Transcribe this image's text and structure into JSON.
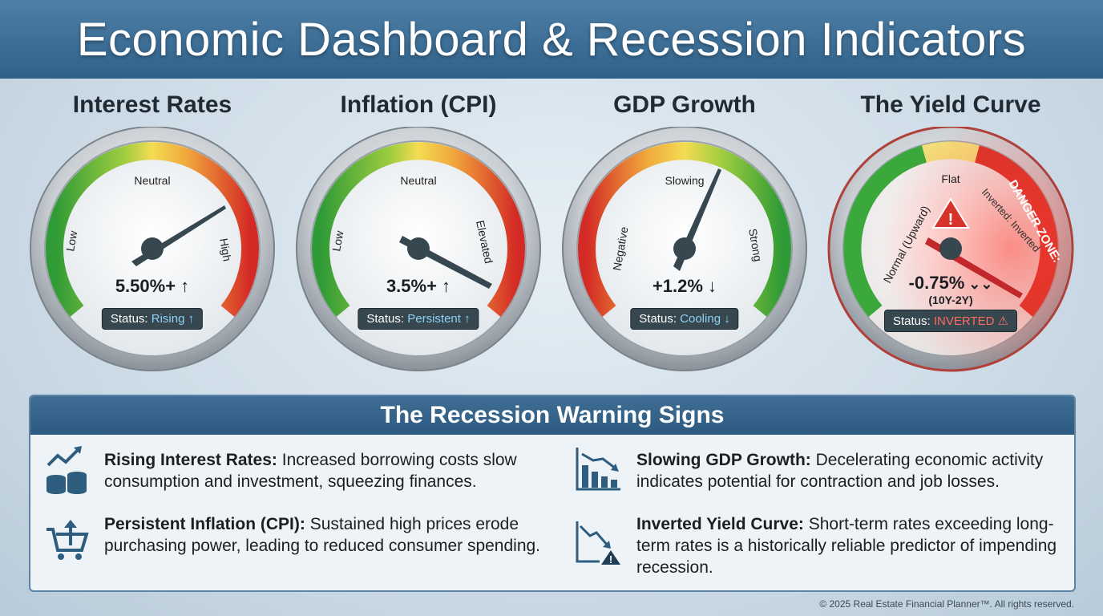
{
  "header": {
    "title": "Economic Dashboard & Recession Indicators"
  },
  "gauges": [
    {
      "title": "Interest Rates",
      "labels": {
        "left": "Low",
        "top": "Neutral",
        "right": "High"
      },
      "value": "5.50%+",
      "trend_icon": "arrow-up-icon",
      "status_label": "Status:",
      "status_value": "Rising",
      "status_icon": "arrow-up-icon"
    },
    {
      "title": "Inflation (CPI)",
      "labels": {
        "left": "Low",
        "top": "Neutral",
        "right": "Elevated"
      },
      "value": "3.5%+",
      "trend_icon": "arrow-up-icon",
      "status_label": "Status:",
      "status_value": "Persistent",
      "status_icon": "arrow-up-icon"
    },
    {
      "title": "GDP Growth",
      "labels": {
        "left": "Negative",
        "top": "Slowing",
        "right": "Strong"
      },
      "value": "+1.2%",
      "trend_icon": "arrow-down-icon",
      "status_label": "Status:",
      "status_value": "Cooling",
      "status_icon": "arrow-down-icon"
    },
    {
      "title": "The Yield Curve",
      "labels": {
        "left": "Normal (Upward)",
        "top": "Flat",
        "right": "Inverted: Inverted",
        "danger": "DANGER ZONE:"
      },
      "value": "-0.75%",
      "sub_value": "(10Y-2Y)",
      "trend_icon": "double-chevron-down-icon",
      "status_label": "Status:",
      "status_value": "INVERTED",
      "status_icon": "warning-icon"
    }
  ],
  "warnings": {
    "title": "The Recession Warning Signs",
    "items": [
      {
        "icon": "chart-coins-icon",
        "heading": "Rising Interest Rates:",
        "text": "Increased borrowing costs slow consumption and investment, squeezing finances."
      },
      {
        "icon": "cart-up-icon",
        "heading": "Persistent Inflation (CPI):",
        "text": "Sustained high prices erode purchasing power, leading to reduced consumer spending."
      },
      {
        "icon": "bar-chart-down-icon",
        "heading": "Slowing GDP Growth:",
        "text": "Decelerating economic activity indicates potential for contraction and job losses."
      },
      {
        "icon": "line-down-warning-icon",
        "heading": "Inverted Yield Curve:",
        "text": "Short-term rates exceeding long-term rates is a historically reliable predictor of impending recession."
      }
    ]
  },
  "footer": {
    "text": "© 2025 Real Estate Financial Planner™. All rights reserved."
  },
  "colors": {
    "header_bg": "#2f6189",
    "green": "#3aa83a",
    "yellow": "#f3d54a",
    "red": "#d8332a",
    "status_text": "#8fd0f5",
    "danger_text": "#ff6b5e"
  }
}
